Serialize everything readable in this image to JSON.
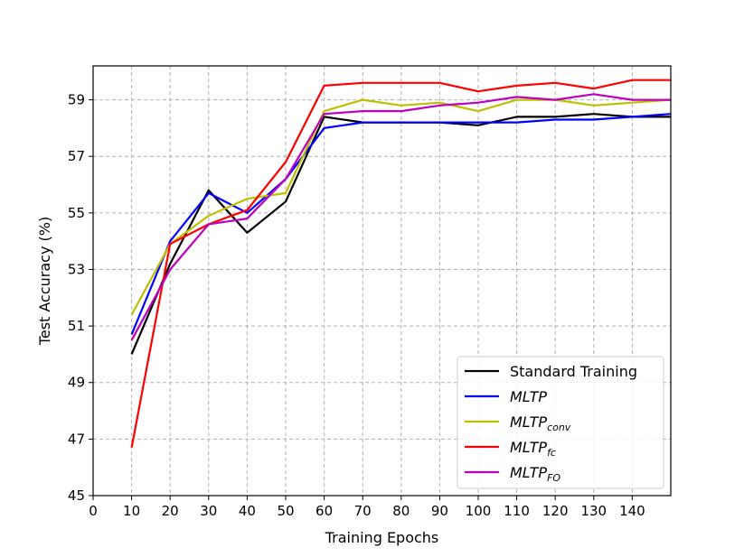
{
  "chart_data": {
    "type": "line",
    "title": "",
    "xlabel": "Training Epochs",
    "ylabel": "Test Accuracy (%)",
    "xlim": [
      0,
      150
    ],
    "ylim": [
      45,
      60.2
    ],
    "xticks": [
      0,
      10,
      20,
      30,
      40,
      50,
      60,
      70,
      80,
      90,
      100,
      110,
      120,
      130,
      140
    ],
    "yticks": [
      45,
      47,
      49,
      51,
      53,
      55,
      57,
      59
    ],
    "grid": true,
    "legend_position": "lower-right",
    "x": [
      10,
      20,
      30,
      40,
      50,
      60,
      70,
      80,
      90,
      100,
      110,
      120,
      130,
      140,
      150
    ],
    "series": [
      {
        "name": "Standard Training",
        "name_main": "Standard Training",
        "name_sub": "",
        "italic": false,
        "color": "#000000",
        "values": [
          50.0,
          53.2,
          55.8,
          54.3,
          55.4,
          58.4,
          58.2,
          58.2,
          58.2,
          58.1,
          58.4,
          58.4,
          58.5,
          58.4,
          58.4
        ]
      },
      {
        "name": "MLTP",
        "name_main": "MLTP",
        "name_sub": "",
        "italic": true,
        "color": "#0000ff",
        "values": [
          50.7,
          54.0,
          55.7,
          55.0,
          56.2,
          58.0,
          58.2,
          58.2,
          58.2,
          58.2,
          58.2,
          58.3,
          58.3,
          58.4,
          58.5
        ]
      },
      {
        "name": "MLTPconv",
        "name_main": "MLTP",
        "name_sub": "conv",
        "italic": true,
        "color": "#bfbf00",
        "values": [
          51.4,
          53.9,
          54.9,
          55.5,
          55.7,
          58.6,
          59.0,
          58.8,
          58.9,
          58.6,
          59.0,
          59.0,
          58.8,
          58.9,
          59.0
        ]
      },
      {
        "name": "MLTPfc",
        "name_main": "MLTP",
        "name_sub": "fc",
        "italic": true,
        "color": "#ff0000",
        "values": [
          46.7,
          53.9,
          54.6,
          55.1,
          56.8,
          59.5,
          59.6,
          59.6,
          59.6,
          59.3,
          59.5,
          59.6,
          59.4,
          59.7,
          59.7
        ]
      },
      {
        "name": "MLTPFO",
        "name_main": "MLTP",
        "name_sub": "FO",
        "italic": true,
        "color": "#bf00bf",
        "values": [
          50.5,
          53.0,
          54.6,
          54.8,
          56.2,
          58.5,
          58.6,
          58.6,
          58.8,
          58.9,
          59.1,
          59.0,
          59.2,
          59.0,
          59.0
        ]
      }
    ]
  }
}
